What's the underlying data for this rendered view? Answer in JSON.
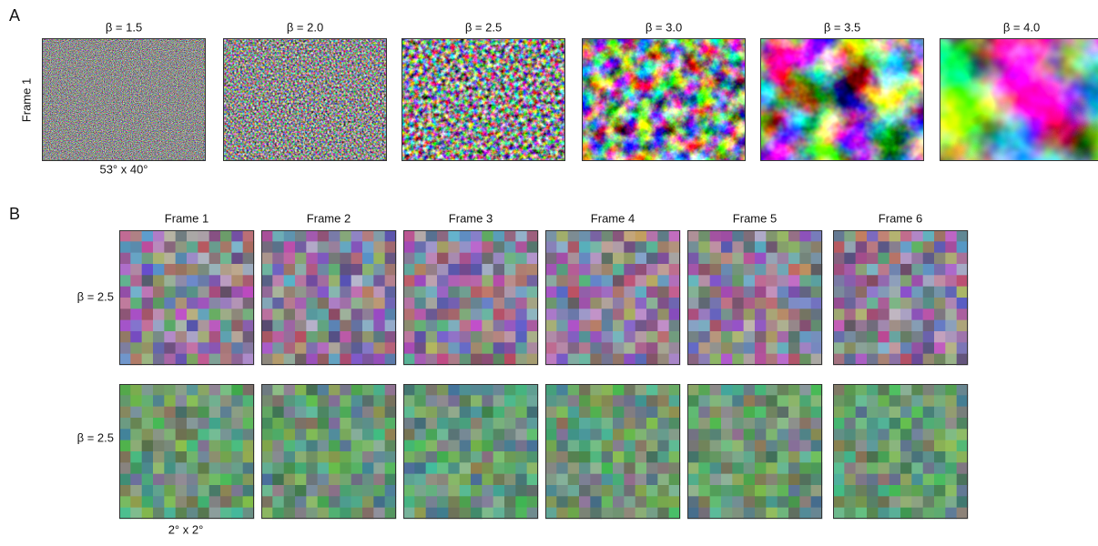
{
  "panel_a": {
    "label": "A",
    "row_label": "Frame 1",
    "columns": [
      "β = 1.5",
      "β = 2.0",
      "β = 2.5",
      "β = 3.0",
      "β = 3.5",
      "β = 4.0"
    ],
    "caption": "53° x 40°"
  },
  "panel_b": {
    "label": "B",
    "columns": [
      "Frame 1",
      "Frame 2",
      "Frame 3",
      "Frame 4",
      "Frame 5",
      "Frame 6"
    ],
    "row_labels": [
      "β = 2.5",
      "β = 2.5"
    ],
    "caption": "2° x 2°"
  }
}
